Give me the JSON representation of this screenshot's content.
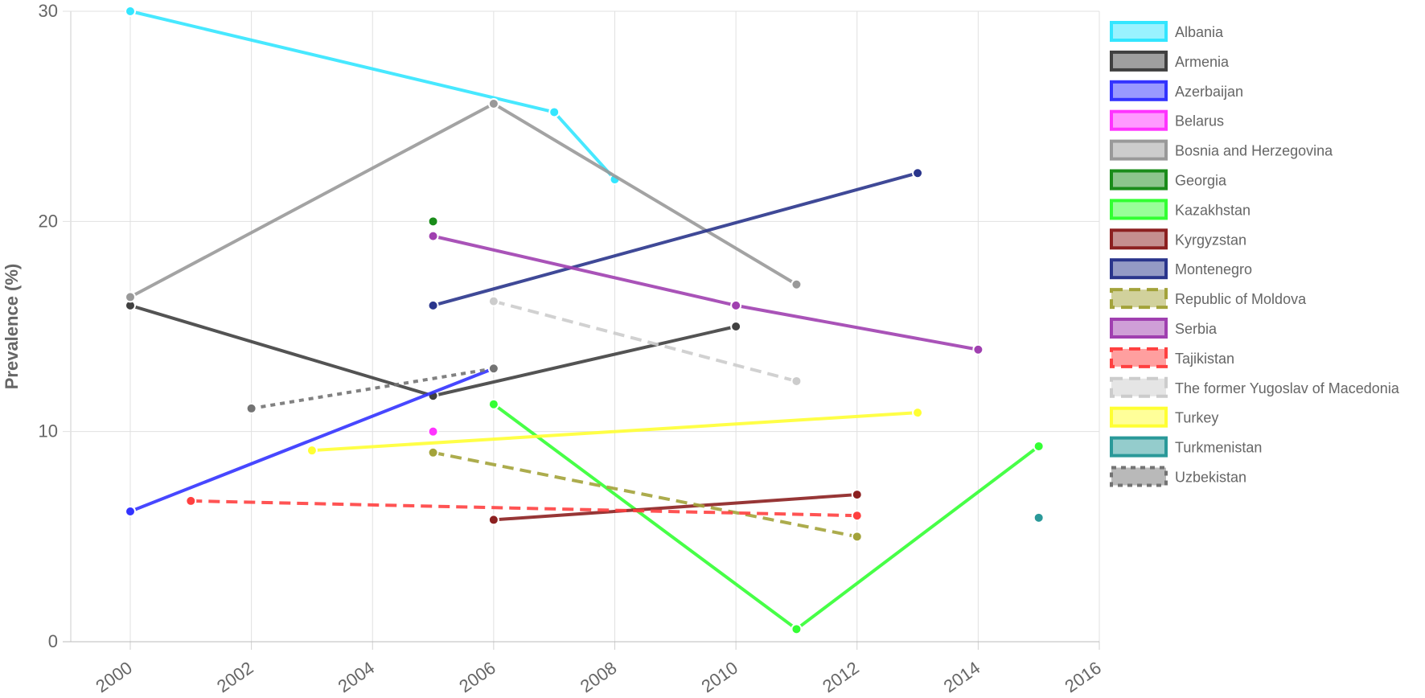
{
  "chart_data": {
    "type": "line",
    "xlabel": "",
    "ylabel": "Prevalence (%)",
    "xlim": [
      1998,
      2016
    ],
    "ylim": [
      0,
      30
    ],
    "x_ticks": [
      "2000",
      "2002",
      "2004",
      "2006",
      "2008",
      "2010",
      "2012",
      "2014",
      "2016"
    ],
    "y_ticks": [
      "0",
      "10",
      "20",
      "30"
    ],
    "grid": true,
    "legend_position": "right",
    "series": [
      {
        "name": "Albania",
        "color": "#33e6ff",
        "dash": "solid",
        "points": [
          [
            2000,
            30.0
          ],
          [
            2007,
            25.2
          ],
          [
            2008,
            22.0
          ]
        ]
      },
      {
        "name": "Armenia",
        "color": "#404040",
        "dash": "solid",
        "points": [
          [
            2000,
            16.0
          ],
          [
            2005,
            11.7
          ],
          [
            2010,
            15.0
          ]
        ]
      },
      {
        "name": "Azerbaijan",
        "color": "#3333ff",
        "dash": "solid",
        "points": [
          [
            2000,
            6.2
          ],
          [
            2006,
            13.0
          ]
        ]
      },
      {
        "name": "Belarus",
        "color": "#ff33ff",
        "dash": "solid",
        "points": [
          [
            2005,
            10.0
          ]
        ]
      },
      {
        "name": "Bosnia and Herzegovina",
        "color": "#999999",
        "dash": "solid",
        "points": [
          [
            2000,
            16.4
          ],
          [
            2006,
            25.6
          ],
          [
            2011,
            17.0
          ]
        ]
      },
      {
        "name": "Georgia",
        "color": "#1a8c1a",
        "dash": "solid",
        "points": [
          [
            2005,
            20.0
          ]
        ]
      },
      {
        "name": "Kazakhstan",
        "color": "#33ff33",
        "dash": "solid",
        "points": [
          [
            2006,
            11.3
          ],
          [
            2011,
            0.6
          ],
          [
            2015,
            9.3
          ]
        ]
      },
      {
        "name": "Kyrgyzstan",
        "color": "#8c2020",
        "dash": "solid",
        "points": [
          [
            2006,
            5.8
          ],
          [
            2012,
            7.0
          ]
        ]
      },
      {
        "name": "Montenegro",
        "color": "#2a358c",
        "dash": "solid",
        "points": [
          [
            2005,
            16.0
          ],
          [
            2013,
            22.3
          ]
        ]
      },
      {
        "name": "Republic of Moldova",
        "color": "#a3a33a",
        "dash": "dash",
        "points": [
          [
            2005,
            9.0
          ],
          [
            2012,
            5.0
          ]
        ]
      },
      {
        "name": "Serbia",
        "color": "#a040b0",
        "dash": "solid",
        "points": [
          [
            2005,
            19.3
          ],
          [
            2010,
            16.0
          ],
          [
            2014,
            13.9
          ]
        ]
      },
      {
        "name": "Tajikistan",
        "color": "#ff4040",
        "dash": "dash",
        "points": [
          [
            2001,
            6.7
          ],
          [
            2012,
            6.0
          ]
        ]
      },
      {
        "name": "The former Yugoslav of Macedonia",
        "color": "#cccccc",
        "dash": "dash",
        "points": [
          [
            2006,
            16.2
          ],
          [
            2011,
            12.4
          ]
        ]
      },
      {
        "name": "Turkey",
        "color": "#ffff33",
        "dash": "solid",
        "points": [
          [
            2003,
            9.1
          ],
          [
            2013,
            10.9
          ]
        ]
      },
      {
        "name": "Turkmenistan",
        "color": "#2a9999",
        "dash": "solid",
        "points": [
          [
            2015,
            5.9
          ]
        ]
      },
      {
        "name": "Uzbekistan",
        "color": "#737373",
        "dash": "dot",
        "points": [
          [
            2002,
            11.1
          ],
          [
            2006,
            13.0
          ]
        ]
      }
    ]
  }
}
